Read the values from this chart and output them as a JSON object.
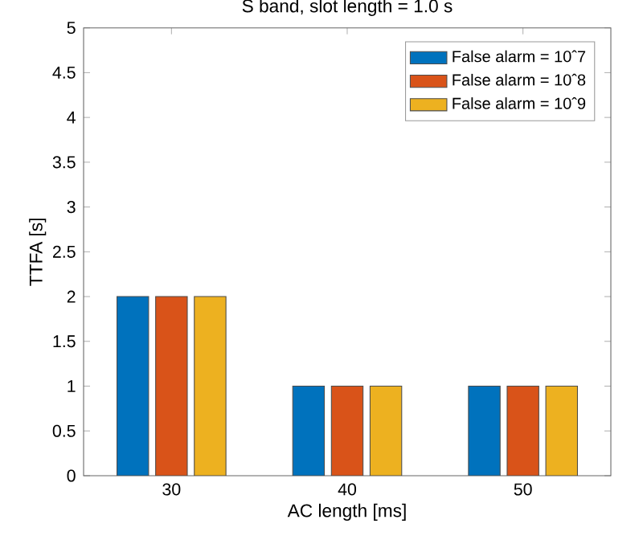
{
  "chart_data": {
    "type": "bar",
    "title": "S band, slot length = 1.0 s",
    "xlabel": "AC length [ms]",
    "ylabel": "TTFA [s]",
    "categories": [
      "30",
      "40",
      "50"
    ],
    "series": [
      {
        "name": "False alarm = 10ˆ7",
        "color": "#0072bd",
        "values": [
          2,
          1,
          1
        ]
      },
      {
        "name": "False alarm = 10ˆ8",
        "color": "#d95319",
        "values": [
          2,
          1,
          1
        ]
      },
      {
        "name": "False alarm = 10ˆ9",
        "color": "#edb120",
        "values": [
          2,
          1,
          1
        ]
      }
    ],
    "ylim": [
      0,
      5
    ],
    "yticks": [
      0,
      0.5,
      1,
      1.5,
      2,
      2.5,
      3,
      3.5,
      4,
      4.5,
      5
    ],
    "grid": false,
    "legend": "top right"
  }
}
